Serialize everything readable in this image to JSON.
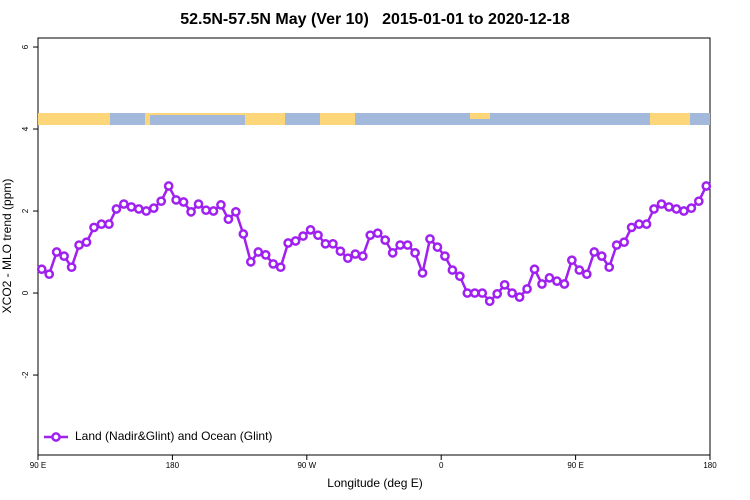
{
  "chart_data": {
    "type": "line",
    "title": "52.5N-57.5N May (Ver 10)   2015-01-01 to 2020-12-18",
    "xlabel": "Longitude (deg E)",
    "ylabel": "XCO2 - MLO trend (ppm)",
    "xlim": [
      90,
      540
    ],
    "ylim": [
      -3.95,
      6.22
    ],
    "xticks": [
      {
        "value": 90,
        "label": "90 E"
      },
      180,
      {
        "value": 270,
        "label": "90 W"
      },
      {
        "value": 360,
        "label": "0"
      },
      {
        "value": 450,
        "label": "90 E"
      },
      {
        "value": 540,
        "label": "180"
      }
    ],
    "yticks": [
      -2,
      0,
      2,
      4,
      6
    ],
    "legend": "bottom-left",
    "x": [
      92.5,
      97.5,
      102.5,
      107.5,
      112.5,
      117.5,
      122.5,
      127.5,
      132.5,
      137.5,
      142.5,
      147.5,
      152.5,
      157.5,
      162.5,
      167.5,
      172.5,
      177.5,
      182.5,
      187.5,
      192.5,
      197.5,
      202.5,
      207.5,
      212.5,
      217.5,
      222.5,
      227.5,
      232.5,
      237.5,
      242.5,
      247.5,
      252.5,
      257.5,
      262.5,
      267.5,
      272.5,
      277.5,
      282.5,
      287.5,
      292.5,
      297.5,
      302.5,
      307.5,
      312.5,
      317.5,
      322.5,
      327.5,
      332.5,
      337.5,
      342.5,
      347.5,
      352.5,
      357.5,
      362.5,
      367.5,
      372.5,
      377.5,
      382.5,
      387.5,
      392.5,
      397.5,
      402.5,
      407.5,
      412.5,
      417.5,
      422.5,
      427.5,
      432.5,
      437.5,
      442.5,
      447.5,
      452.5,
      457.5,
      462.5,
      467.5,
      472.5,
      477.5,
      482.5,
      487.5,
      492.5,
      497.5,
      502.5,
      507.5,
      512.5,
      517.5,
      522.5,
      527.5,
      532.5,
      537.5
    ],
    "series": [
      {
        "name": "Land (Nadir&Glint) and Ocean (Glint)",
        "color": "#a020f0",
        "values": [
          0.58,
          0.46,
          1.0,
          0.9,
          0.63,
          1.17,
          1.24,
          1.6,
          1.68,
          1.68,
          2.05,
          2.17,
          2.1,
          2.05,
          2.0,
          2.07,
          2.24,
          2.61,
          2.27,
          2.22,
          1.98,
          2.17,
          2.02,
          2.0,
          2.15,
          1.8,
          1.98,
          1.44,
          0.76,
          1.0,
          0.93,
          0.71,
          0.63,
          1.22,
          1.27,
          1.39,
          1.54,
          1.41,
          1.2,
          1.2,
          1.02,
          0.85,
          0.95,
          0.9,
          1.41,
          1.46,
          1.29,
          0.98,
          1.17,
          1.17,
          0.98,
          0.49,
          1.32,
          1.12,
          0.9,
          0.56,
          0.41,
          0.0,
          0.0,
          0.0,
          -0.2,
          -0.02,
          0.2,
          0.0,
          -0.1,
          0.1,
          0.58,
          0.22,
          0.37,
          0.29,
          0.22,
          0.8,
          0.56,
          0.46,
          1.0,
          0.9,
          0.63,
          1.17,
          1.24,
          1.6,
          1.68,
          1.68,
          2.05,
          2.17,
          2.1,
          2.05,
          2.0,
          2.07,
          2.24,
          2.61
        ]
      }
    ]
  }
}
